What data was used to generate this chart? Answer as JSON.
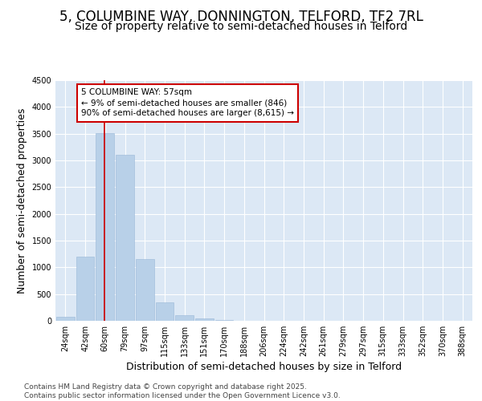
{
  "title": "5, COLUMBINE WAY, DONNINGTON, TELFORD, TF2 7RL",
  "subtitle": "Size of property relative to semi-detached houses in Telford",
  "xlabel": "Distribution of semi-detached houses by size in Telford",
  "ylabel": "Number of semi-detached properties",
  "bins": [
    "24sqm",
    "42sqm",
    "60sqm",
    "79sqm",
    "97sqm",
    "115sqm",
    "133sqm",
    "151sqm",
    "170sqm",
    "188sqm",
    "206sqm",
    "224sqm",
    "242sqm",
    "261sqm",
    "279sqm",
    "297sqm",
    "315sqm",
    "333sqm",
    "352sqm",
    "370sqm",
    "388sqm"
  ],
  "values": [
    80,
    1200,
    3510,
    3100,
    1150,
    340,
    110,
    50,
    10,
    0,
    0,
    0,
    0,
    0,
    0,
    0,
    0,
    0,
    0,
    0,
    0
  ],
  "bar_color": "#b8d0e8",
  "bar_edgecolor": "#9ab8d8",
  "vline_x": 1.97,
  "vline_color": "#cc0000",
  "annotation_text": "5 COLUMBINE WAY: 57sqm\n← 9% of semi-detached houses are smaller (846)\n90% of semi-detached houses are larger (8,615) →",
  "annotation_box_facecolor": "#ffffff",
  "annotation_box_edgecolor": "#cc0000",
  "ylim": [
    0,
    4500
  ],
  "yticks": [
    0,
    500,
    1000,
    1500,
    2000,
    2500,
    3000,
    3500,
    4000,
    4500
  ],
  "footer_text": "Contains HM Land Registry data © Crown copyright and database right 2025.\nContains public sector information licensed under the Open Government Licence v3.0.",
  "fig_bg_color": "#ffffff",
  "plot_bg_color": "#dce8f5",
  "grid_color": "#ffffff",
  "title_fontsize": 12,
  "subtitle_fontsize": 10,
  "axis_label_fontsize": 9,
  "tick_fontsize": 7,
  "footer_fontsize": 6.5,
  "annot_fontsize": 7.5
}
